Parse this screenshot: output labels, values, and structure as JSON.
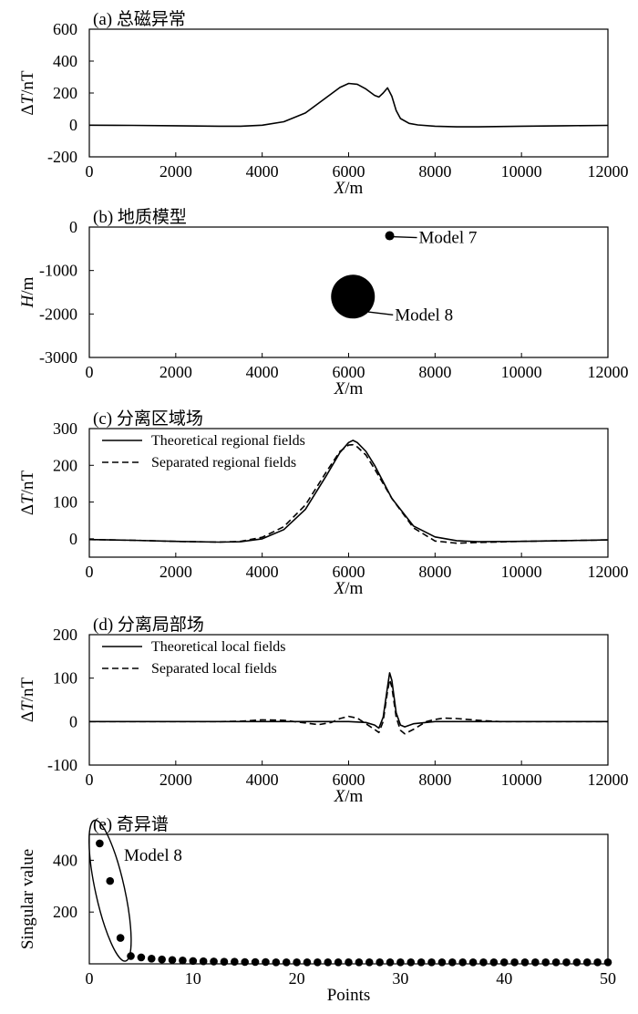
{
  "chart_data": [
    {
      "panel": "a",
      "type": "line",
      "title": "(a) 总磁异常",
      "xlabel": "X/m",
      "ylabel": "ΔT/nT",
      "xlim": [
        0,
        12000
      ],
      "ylim": [
        -200,
        600
      ],
      "xticks": [
        0,
        2000,
        4000,
        6000,
        8000,
        10000,
        12000
      ],
      "yticks": [
        -200,
        0,
        200,
        400,
        600
      ],
      "xtick_labels": [
        "0",
        "2000",
        "4000",
        "6000",
        "8000",
        "10000",
        "12000"
      ],
      "ytick_labels": [
        "-200",
        "0",
        "200",
        "400",
        "600"
      ],
      "grid": false,
      "series": [
        {
          "style": "solid",
          "x": [
            0,
            1000,
            2000,
            3000,
            3500,
            4000,
            4500,
            5000,
            5500,
            5800,
            6000,
            6200,
            6400,
            6600,
            6700,
            6800,
            6900,
            7000,
            7100,
            7200,
            7400,
            7600,
            8000,
            8500,
            9000,
            10000,
            11000,
            12000
          ],
          "y": [
            -2,
            -3,
            -5,
            -8,
            -8,
            -2,
            20,
            75,
            175,
            235,
            260,
            255,
            225,
            185,
            175,
            200,
            232,
            180,
            90,
            40,
            10,
            0,
            -8,
            -12,
            -12,
            -8,
            -5,
            -3
          ]
        }
      ]
    },
    {
      "panel": "b",
      "type": "scatter",
      "title": "(b) 地质模型",
      "xlabel": "X/m",
      "ylabel": "H/m",
      "xlim": [
        0,
        12000
      ],
      "ylim": [
        -3000,
        0
      ],
      "xticks": [
        0,
        2000,
        4000,
        6000,
        8000,
        10000,
        12000
      ],
      "yticks": [
        -3000,
        -2000,
        -1000,
        0
      ],
      "xtick_labels": [
        "0",
        "2000",
        "4000",
        "6000",
        "8000",
        "10000",
        "12000"
      ],
      "ytick_labels": [
        "-3000",
        "-2000",
        "-1000",
        "0"
      ],
      "grid": false,
      "bodies": [
        {
          "label": "Model 7",
          "x": 6950,
          "y": -200,
          "size": "small"
        },
        {
          "label": "Model 8",
          "x": 6100,
          "y": -1600,
          "size": "large"
        }
      ]
    },
    {
      "panel": "c",
      "type": "line",
      "title": "(c) 分离区域场",
      "xlabel": "X/m",
      "ylabel": "ΔT/nT",
      "xlim": [
        0,
        12000
      ],
      "ylim": [
        -50,
        300
      ],
      "xticks": [
        0,
        2000,
        4000,
        6000,
        8000,
        10000,
        12000
      ],
      "yticks": [
        0,
        100,
        200,
        300
      ],
      "xtick_labels": [
        "0",
        "2000",
        "4000",
        "6000",
        "8000",
        "10000",
        "12000"
      ],
      "ytick_labels": [
        "0",
        "100",
        "200",
        "300"
      ],
      "legend": "top-left",
      "grid": false,
      "series": [
        {
          "name": "Theoretical regional fields",
          "style": "solid",
          "x": [
            0,
            1000,
            2000,
            3000,
            3500,
            4000,
            4500,
            5000,
            5500,
            5800,
            6000,
            6100,
            6200,
            6400,
            6600,
            7000,
            7500,
            8000,
            8500,
            9000,
            10000,
            11000,
            12000
          ],
          "y": [
            -2,
            -4,
            -7,
            -9,
            -8,
            0,
            25,
            80,
            175,
            235,
            262,
            268,
            262,
            238,
            200,
            110,
            35,
            5,
            -5,
            -8,
            -7,
            -5,
            -3
          ]
        },
        {
          "name": "Separated regional fields",
          "style": "dashed",
          "x": [
            0,
            1000,
            2000,
            3000,
            3500,
            4000,
            4500,
            5000,
            5500,
            5800,
            6000,
            6100,
            6200,
            6400,
            6600,
            7000,
            7500,
            8000,
            8500,
            9000,
            10000,
            11000,
            12000
          ],
          "y": [
            -2,
            -4,
            -7,
            -9,
            -7,
            4,
            33,
            92,
            185,
            238,
            255,
            256,
            250,
            228,
            190,
            110,
            30,
            -6,
            -12,
            -10,
            -7,
            -5,
            -3
          ]
        }
      ]
    },
    {
      "panel": "d",
      "type": "line",
      "title": "(d) 分离局部场",
      "xlabel": "X/m",
      "ylabel": "ΔT/nT",
      "xlim": [
        0,
        12000
      ],
      "ylim": [
        -100,
        200
      ],
      "xticks": [
        0,
        2000,
        4000,
        6000,
        8000,
        10000,
        12000
      ],
      "yticks": [
        -100,
        0,
        100,
        200
      ],
      "xtick_labels": [
        "0",
        "2000",
        "4000",
        "6000",
        "8000",
        "10000",
        "12000"
      ],
      "ytick_labels": [
        "-100",
        "0",
        "100",
        "200"
      ],
      "legend": "top-left",
      "grid": false,
      "series": [
        {
          "name": "Theoretical local fields",
          "style": "solid",
          "x": [
            0,
            3000,
            4000,
            5000,
            6000,
            6400,
            6600,
            6700,
            6800,
            6900,
            6950,
            7000,
            7100,
            7200,
            7300,
            7500,
            8000,
            9000,
            12000
          ],
          "y": [
            0,
            0,
            0,
            0,
            0,
            -2,
            -8,
            -15,
            10,
            80,
            112,
            95,
            20,
            -8,
            -12,
            -5,
            0,
            0,
            0
          ]
        },
        {
          "name": "Separated local fields",
          "style": "dashed",
          "x": [
            0,
            3000,
            3500,
            4000,
            4500,
            5000,
            5300,
            5600,
            5800,
            6000,
            6200,
            6400,
            6600,
            6700,
            6800,
            6900,
            6950,
            7000,
            7100,
            7200,
            7300,
            7500,
            7800,
            8000,
            8200,
            8500,
            9000,
            9500,
            10000,
            12000
          ],
          "y": [
            0,
            0,
            1,
            4,
            3,
            -3,
            -7,
            -2,
            7,
            12,
            8,
            -5,
            -18,
            -25,
            0,
            70,
            96,
            80,
            10,
            -20,
            -28,
            -18,
            0,
            5,
            8,
            7,
            3,
            0,
            0,
            0
          ]
        }
      ]
    },
    {
      "panel": "e",
      "type": "scatter",
      "title": "(e) 奇异谱",
      "xlabel": "Points",
      "ylabel": "Singular value",
      "xlim": [
        0,
        50
      ],
      "ylim": [
        0,
        500
      ],
      "xticks": [
        0,
        10,
        20,
        30,
        40,
        50
      ],
      "yticks": [
        200,
        400
      ],
      "xtick_labels": [
        "0",
        "10",
        "20",
        "30",
        "40",
        "50"
      ],
      "ytick_labels": [
        "200",
        "400"
      ],
      "grid": false,
      "annotation": "Model 8",
      "x": [
        1,
        2,
        3,
        4,
        5,
        6,
        7,
        8,
        9,
        10,
        11,
        12,
        13,
        14,
        15,
        16,
        17,
        18,
        19,
        20,
        21,
        22,
        23,
        24,
        25,
        26,
        27,
        28,
        29,
        30,
        31,
        32,
        33,
        34,
        35,
        36,
        37,
        38,
        39,
        40,
        41,
        42,
        43,
        44,
        45,
        46,
        47,
        48,
        49,
        50
      ],
      "y": [
        465,
        320,
        100,
        30,
        25,
        20,
        17,
        15,
        13,
        11,
        10,
        9,
        8,
        8,
        7,
        7,
        7,
        6,
        6,
        6,
        6,
        6,
        6,
        6,
        6,
        6,
        6,
        6,
        6,
        6,
        6,
        6,
        6,
        6,
        6,
        6,
        6,
        6,
        6,
        6,
        6,
        6,
        6,
        6,
        6,
        6,
        6,
        6,
        6,
        6
      ]
    }
  ]
}
